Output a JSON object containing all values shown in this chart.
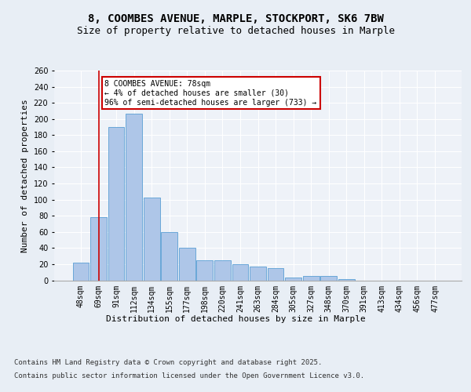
{
  "title1": "8, COOMBES AVENUE, MARPLE, STOCKPORT, SK6 7BW",
  "title2": "Size of property relative to detached houses in Marple",
  "xlabel": "Distribution of detached houses by size in Marple",
  "ylabel": "Number of detached properties",
  "categories": [
    "48sqm",
    "69sqm",
    "91sqm",
    "112sqm",
    "134sqm",
    "155sqm",
    "177sqm",
    "198sqm",
    "220sqm",
    "241sqm",
    "263sqm",
    "284sqm",
    "305sqm",
    "327sqm",
    "348sqm",
    "370sqm",
    "391sqm",
    "413sqm",
    "434sqm",
    "456sqm",
    "477sqm"
  ],
  "values": [
    22,
    78,
    190,
    207,
    103,
    60,
    40,
    25,
    25,
    20,
    17,
    15,
    3,
    5,
    5,
    1,
    0,
    0,
    0,
    0,
    0
  ],
  "bar_color": "#aec6e8",
  "bar_edge_color": "#5a9fd4",
  "red_line_x": 1,
  "annotation_text": "8 COOMBES AVENUE: 78sqm\n← 4% of detached houses are smaller (30)\n96% of semi-detached houses are larger (733) →",
  "annotation_box_color": "#ffffff",
  "annotation_box_edge": "#cc0000",
  "footer1": "Contains HM Land Registry data © Crown copyright and database right 2025.",
  "footer2": "Contains public sector information licensed under the Open Government Licence v3.0.",
  "bg_color": "#e8eef5",
  "plot_bg_color": "#eef2f8",
  "grid_color": "#ffffff",
  "ylim": [
    0,
    260
  ],
  "title_fontsize": 10,
  "subtitle_fontsize": 9,
  "axis_label_fontsize": 8,
  "tick_fontsize": 7,
  "footer_fontsize": 6.5
}
